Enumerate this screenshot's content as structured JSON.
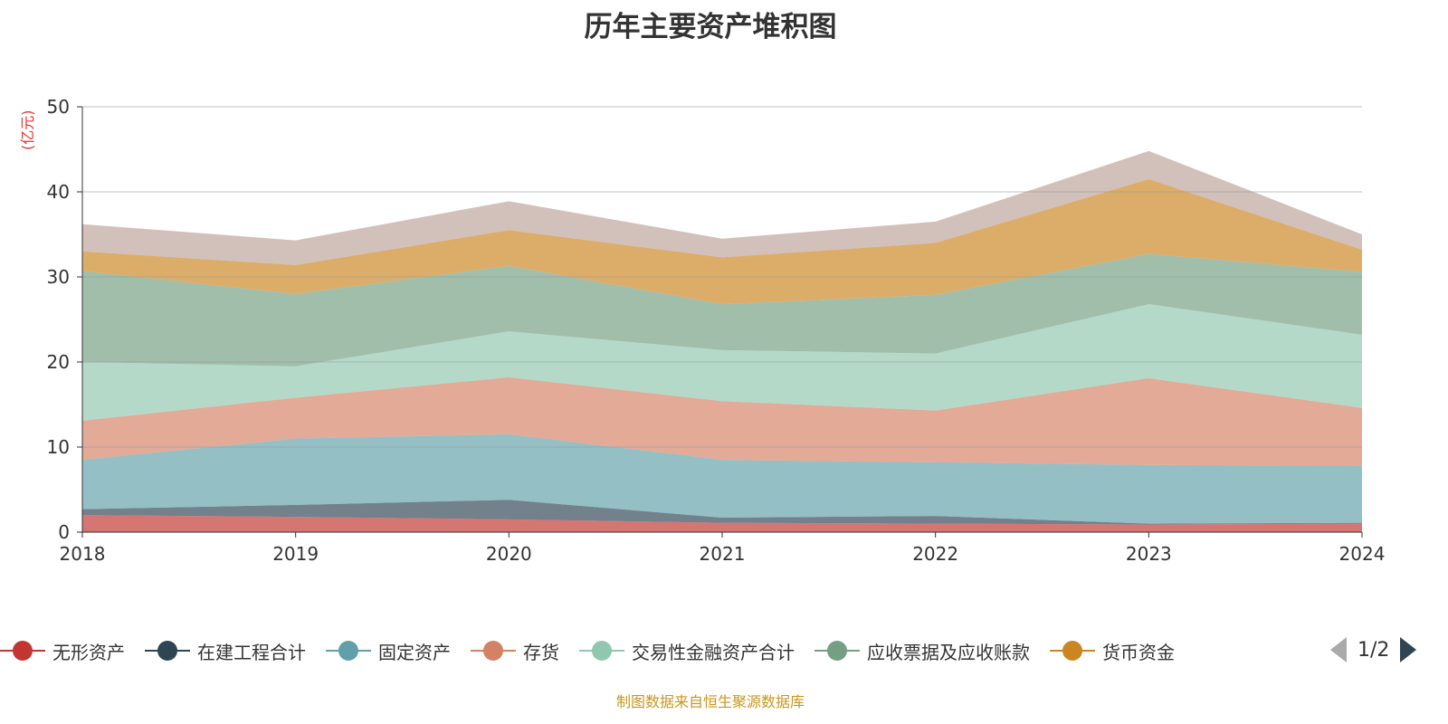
{
  "chart_data": {
    "type": "area",
    "stacked": true,
    "title": "历年主要资产堆积图",
    "ylabel": "(亿元)",
    "ylim": [
      0,
      50
    ],
    "yticks": [
      0,
      10,
      20,
      30,
      40,
      50
    ],
    "grid": true,
    "categories": [
      "2018",
      "2019",
      "2020",
      "2021",
      "2022",
      "2023",
      "2024"
    ],
    "series": [
      {
        "name": "无形资产",
        "color": "#c23531",
        "values": [
          2.0,
          1.8,
          1.5,
          1.1,
          1.0,
          0.9,
          1.0
        ]
      },
      {
        "name": "在建工程合计",
        "color": "#2f4554",
        "values": [
          0.7,
          1.4,
          2.3,
          0.6,
          0.9,
          0.1,
          0.1
        ]
      },
      {
        "name": "固定资产",
        "color": "#61a0a8",
        "values": [
          5.8,
          7.8,
          7.7,
          6.8,
          6.3,
          6.9,
          6.7
        ]
      },
      {
        "name": "存货",
        "color": "#d48265",
        "values": [
          4.6,
          4.8,
          6.7,
          6.9,
          6.1,
          10.2,
          6.8
        ]
      },
      {
        "name": "交易性金融资产合计",
        "color": "#91c7ae",
        "values": [
          6.9,
          3.7,
          5.4,
          6.0,
          6.7,
          8.7,
          8.6
        ]
      },
      {
        "name": "应收票据及应收账款",
        "color": "#749f83",
        "values": [
          10.7,
          8.5,
          7.7,
          5.4,
          6.9,
          5.9,
          7.4
        ]
      },
      {
        "name": "货币资金",
        "color": "#ca8622",
        "values": [
          2.3,
          3.4,
          4.2,
          5.5,
          6.1,
          8.8,
          2.6
        ]
      },
      {
        "color": "#bda29a",
        "values": [
          3.2,
          2.9,
          3.4,
          2.2,
          2.5,
          3.3,
          1.8
        ]
      }
    ],
    "legend_position": "bottom"
  },
  "legend_pager": "1/2",
  "source": "制图数据来自恒生聚源数据库"
}
